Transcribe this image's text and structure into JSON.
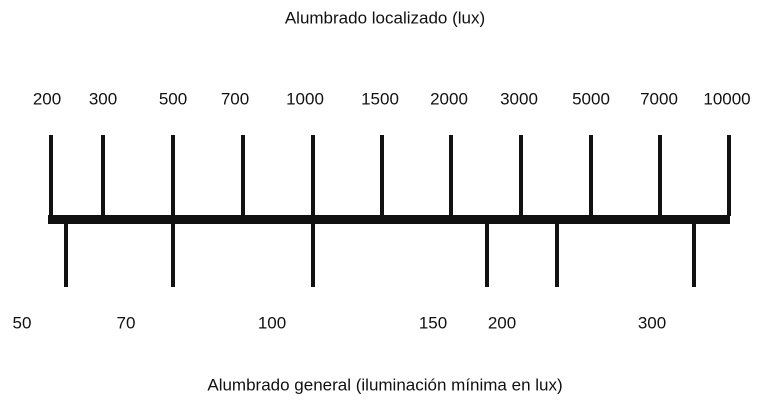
{
  "top": {
    "title": "Alumbrado localizado (lux)",
    "labels": [
      "200",
      "300",
      "500",
      "700",
      "1000",
      "1500",
      "2000",
      "3000",
      "5000",
      "7000",
      "10000"
    ]
  },
  "bottom": {
    "title": "Alumbrado general (iluminación mínima en lux)",
    "labels": [
      "50",
      "70",
      "100",
      "150",
      "200",
      "300"
    ]
  }
}
